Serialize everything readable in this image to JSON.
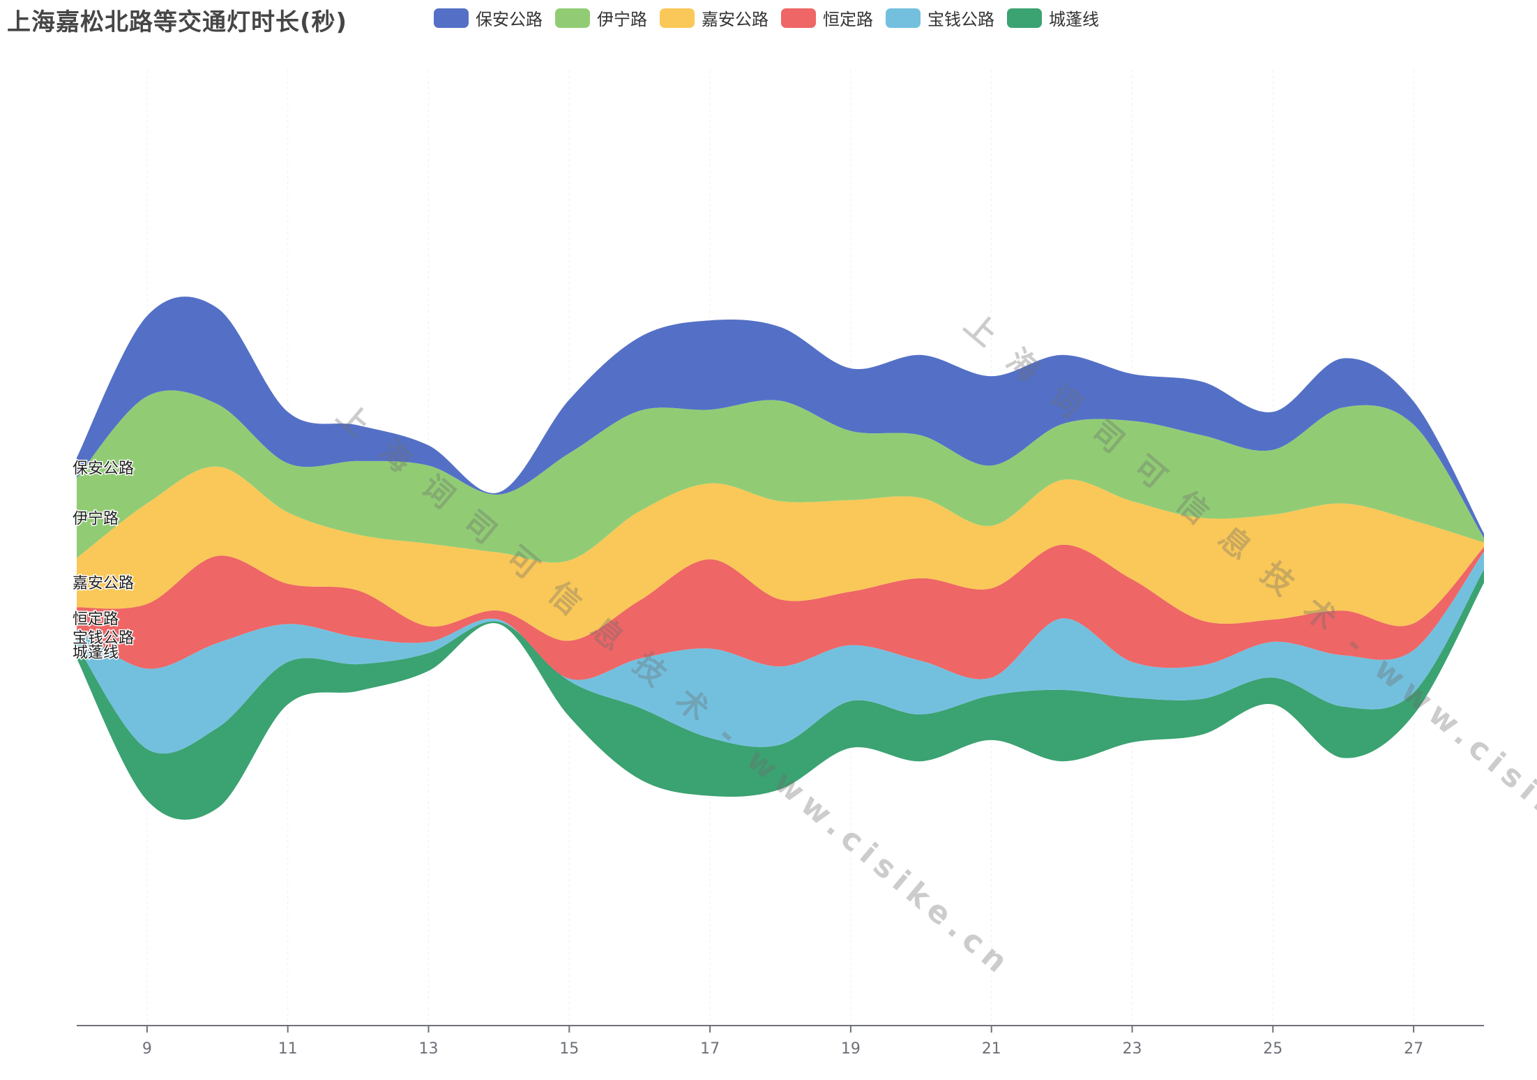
{
  "chart_data": {
    "type": "area",
    "subtype": "themeriver",
    "title": "上海嘉松北路等交通灯时长(秒)",
    "x": [
      8,
      9,
      10,
      11,
      12,
      13,
      14,
      15,
      16,
      17,
      18,
      19,
      20,
      21,
      22,
      23,
      24,
      25,
      26,
      27,
      28
    ],
    "x_ticks": [
      9,
      11,
      13,
      15,
      17,
      19,
      21,
      23,
      25,
      27
    ],
    "xlim": [
      8,
      28
    ],
    "series": [
      {
        "name": "城蓬线",
        "color": "#3ba272",
        "values": [
          30,
          115,
          180,
          95,
          60,
          40,
          5,
          80,
          160,
          130,
          100,
          105,
          105,
          100,
          160,
          100,
          80,
          60,
          115,
          50,
          30
        ]
      },
      {
        "name": "宝钱公路",
        "color": "#73c0de",
        "values": [
          35,
          180,
          190,
          85,
          60,
          25,
          5,
          5,
          110,
          200,
          175,
          125,
          120,
          40,
          160,
          80,
          75,
          80,
          115,
          95,
          40
        ]
      },
      {
        "name": "恒定路",
        "color": "#ee6666",
        "values": [
          50,
          145,
          195,
          90,
          105,
          35,
          20,
          85,
          130,
          200,
          150,
          120,
          185,
          200,
          165,
          185,
          100,
          50,
          100,
          60,
          10
        ]
      },
      {
        "name": "嘉安公路",
        "color": "#fac858",
        "values": [
          110,
          225,
          200,
          160,
          125,
          185,
          130,
          180,
          200,
          170,
          220,
          205,
          180,
          140,
          145,
          175,
          230,
          235,
          240,
          230,
          10
        ]
      },
      {
        "name": "伊宁路",
        "color": "#91cc75",
        "values": [
          180,
          240,
          140,
          110,
          165,
          175,
          130,
          240,
          225,
          165,
          225,
          155,
          140,
          135,
          125,
          180,
          185,
          145,
          215,
          215,
          10
        ]
      },
      {
        "name": "保安公路",
        "color": "#5470c6",
        "values": [
          45,
          180,
          215,
          115,
          80,
          45,
          5,
          120,
          165,
          200,
          165,
          140,
          180,
          200,
          155,
          105,
          120,
          85,
          110,
          52,
          10
        ]
      }
    ],
    "legend_position": "top",
    "grid": false,
    "inline_labels": [
      "保安公路",
      "伊宁路",
      "嘉安公路",
      "恒定路",
      "宝钱公路",
      "城蓬线"
    ]
  },
  "watermark": "上 海 词 司 可 信 息 技 术 - www.cisike.cn"
}
